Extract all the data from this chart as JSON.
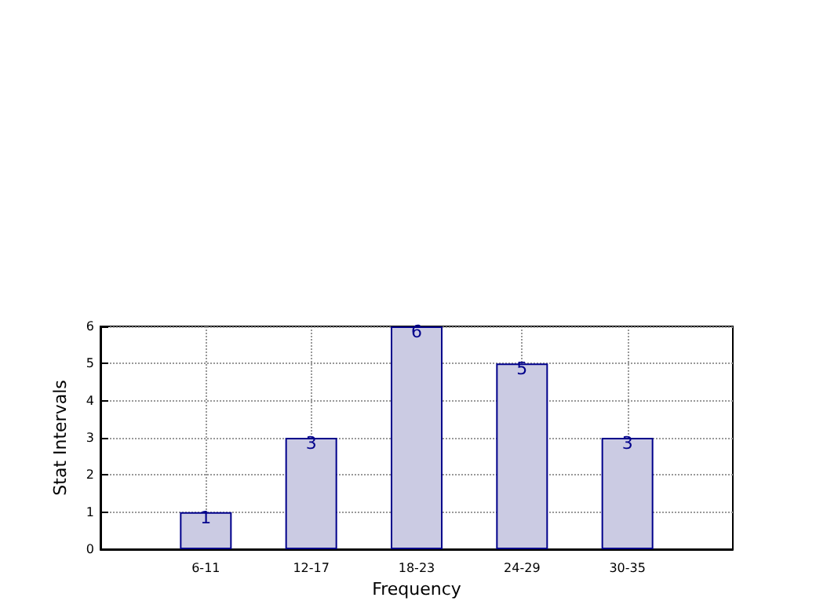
{
  "chart_data": {
    "type": "bar",
    "categories": [
      "6-11",
      "12-17",
      "18-23",
      "24-29",
      "30-35"
    ],
    "values": [
      1,
      3,
      6,
      5,
      3
    ],
    "color": "#cbcbe3",
    "xlabel": "Frequency",
    "ylabel": "Stat Intervals",
    "ylim": [
      0,
      6
    ],
    "yticks": [
      0,
      1,
      2,
      3,
      4,
      5,
      6
    ],
    "grid": true,
    "data_labels": true
  }
}
